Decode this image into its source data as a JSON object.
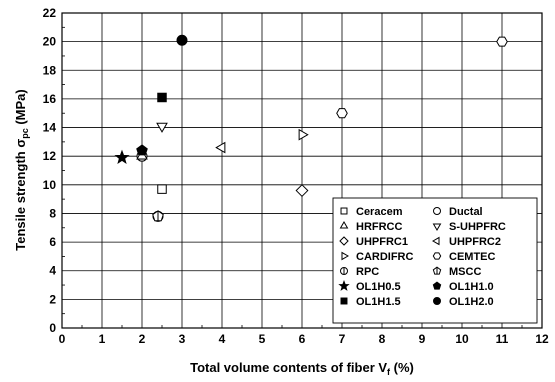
{
  "chart_data": {
    "type": "scatter",
    "title": "",
    "xlabel": "Total volume contents of fiber V",
    "xlabel_sub": "f",
    "xlabel_suffix": " (%)",
    "ylabel": "Tensile strength σ",
    "ylabel_sub": "pc",
    "ylabel_suffix": " (MPa)",
    "xlim": [
      0,
      12
    ],
    "ylim": [
      0,
      22
    ],
    "x_ticks": [
      0,
      1,
      2,
      3,
      4,
      5,
      6,
      7,
      8,
      9,
      10,
      11,
      12
    ],
    "y_ticks": [
      0,
      2,
      4,
      6,
      8,
      10,
      12,
      14,
      16,
      18,
      20,
      22
    ],
    "grid": true,
    "legend_position": "bottom-right",
    "series": [
      {
        "name": "Ceracem",
        "marker": "square-open",
        "points": [
          [
            2.5,
            9.7
          ]
        ]
      },
      {
        "name": "Ductal",
        "marker": "circle-open",
        "points": [
          [
            2.0,
            12.0
          ]
        ]
      },
      {
        "name": "HRFRCC",
        "marker": "triangle-up-open",
        "points": [
          [
            2.0,
            12.0
          ]
        ]
      },
      {
        "name": "S-UHPFRC",
        "marker": "triangle-down-open",
        "points": [
          [
            2.5,
            14.1
          ]
        ]
      },
      {
        "name": "UHPFRC1",
        "marker": "diamond-open",
        "points": [
          [
            6.0,
            9.6
          ]
        ]
      },
      {
        "name": "UHPFRC2",
        "marker": "triangle-left-open",
        "points": [
          [
            4.0,
            12.6
          ]
        ]
      },
      {
        "name": "CARDIFRC",
        "marker": "triangle-right-open",
        "points": [
          [
            6.0,
            13.5
          ]
        ]
      },
      {
        "name": "CEMTEC",
        "marker": "hexagon-open",
        "points": [
          [
            7.0,
            15.0
          ],
          [
            11.0,
            20.0
          ]
        ]
      },
      {
        "name": "RPC",
        "marker": "circle-cross",
        "points": [
          [
            2.4,
            7.8
          ]
        ]
      },
      {
        "name": "MSCC",
        "marker": "pentagon-cross",
        "points": [
          [
            2.4,
            7.8
          ]
        ]
      },
      {
        "name": "OL1H0.5",
        "marker": "star-filled",
        "points": [
          [
            1.5,
            11.9
          ]
        ]
      },
      {
        "name": "OL1H1.0",
        "marker": "pentagon-filled",
        "points": [
          [
            2.0,
            12.4
          ]
        ]
      },
      {
        "name": "OL1H1.5",
        "marker": "square-filled",
        "points": [
          [
            2.5,
            16.1
          ]
        ]
      },
      {
        "name": "OL1H2.0",
        "marker": "circle-filled",
        "points": [
          [
            3.0,
            20.1
          ]
        ]
      }
    ]
  }
}
